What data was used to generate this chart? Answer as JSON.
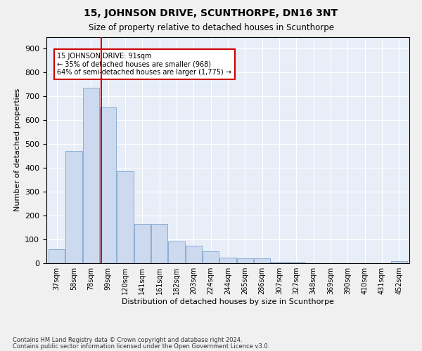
{
  "title": "15, JOHNSON DRIVE, SCUNTHORPE, DN16 3NT",
  "subtitle": "Size of property relative to detached houses in Scunthorpe",
  "xlabel": "Distribution of detached houses by size in Scunthorpe",
  "ylabel": "Number of detached properties",
  "bar_color": "#ccd9ee",
  "bar_edge_color": "#8aadd4",
  "background_color": "#e8eef8",
  "grid_color": "#ffffff",
  "annotation_box_color": "#cc0000",
  "annotation_text": "15 JOHNSON DRIVE: 91sqm\n← 35% of detached houses are smaller (968)\n64% of semi-detached houses are larger (1,775) →",
  "vline_color": "#cc0000",
  "vline_x_index": 2,
  "categories": [
    "37sqm",
    "58sqm",
    "78sqm",
    "99sqm",
    "120sqm",
    "141sqm",
    "161sqm",
    "182sqm",
    "203sqm",
    "224sqm",
    "244sqm",
    "265sqm",
    "286sqm",
    "307sqm",
    "327sqm",
    "348sqm",
    "369sqm",
    "390sqm",
    "410sqm",
    "431sqm",
    "452sqm"
  ],
  "values": [
    60,
    470,
    735,
    655,
    385,
    165,
    165,
    90,
    75,
    50,
    25,
    20,
    20,
    5,
    5,
    0,
    0,
    0,
    0,
    0,
    10
  ],
  "ylim": [
    0,
    950
  ],
  "yticks": [
    0,
    100,
    200,
    300,
    400,
    500,
    600,
    700,
    800,
    900
  ],
  "footnote1": "Contains HM Land Registry data © Crown copyright and database right 2024.",
  "footnote2": "Contains public sector information licensed under the Open Government Licence v3.0.",
  "fig_facecolor": "#f0f0f0"
}
